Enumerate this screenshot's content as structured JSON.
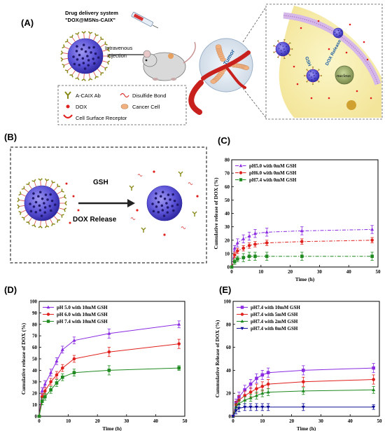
{
  "panels": {
    "A": {
      "label": "(A)",
      "system_title_1": "Drug delivery system",
      "system_title_2": "\"DOX@MSNs-CAIX\"",
      "injection_1": "Intravenous",
      "injection_2": "Injection",
      "tumor_label": "Tumor",
      "gsh_label": "GSH",
      "dox_release_label": "DOX Release",
      "nucleus_label": "nucleus",
      "legend": {
        "antibody": "A-CAIX Ab",
        "disulfide": "Disulfide Bond",
        "dox": "DOX",
        "cancer_cell": "Cancer Cell",
        "receptor": "Cell Surface Receptor"
      }
    },
    "B": {
      "label": "(B)",
      "gsh": "GSH",
      "dox_release": "DOX Release"
    }
  },
  "colors": {
    "purple": "#8a2be2",
    "red": "#e0201c",
    "green": "#1f8a1f",
    "navy": "#10109a",
    "sphere": "#5a52d6",
    "antibody": "#8a8a1a"
  },
  "chart_data": [
    {
      "panel": "(C)",
      "type": "line",
      "xlabel": "Time (h)",
      "ylabel": "Cumulative release of DOX (%)",
      "xlim": [
        0,
        50
      ],
      "ylim": [
        0,
        80
      ],
      "xticks": [
        0,
        10,
        20,
        30,
        40,
        50
      ],
      "yticks": [
        0,
        10,
        20,
        30,
        40,
        50,
        60,
        70,
        80
      ],
      "legend_position": "top-left",
      "series": [
        {
          "name": "pH5.0 with 0mM GSH",
          "color": "#8a2be2",
          "marker": "triangle-up",
          "dash": "dashdot",
          "x": [
            0,
            1,
            2,
            4,
            6,
            8,
            12,
            24,
            48
          ],
          "y": [
            0,
            14,
            18,
            21,
            23,
            25,
            26,
            27,
            28
          ],
          "err": [
            0,
            2,
            3,
            3,
            3,
            3,
            3,
            3,
            3
          ]
        },
        {
          "name": "pH6.0 with 0mM GSH",
          "color": "#e0201c",
          "marker": "circle",
          "dash": "dashdot",
          "x": [
            0,
            1,
            2,
            4,
            6,
            8,
            12,
            24,
            48
          ],
          "y": [
            0,
            9,
            12,
            14,
            16,
            17,
            18,
            19,
            20
          ],
          "err": [
            0,
            2,
            2,
            2,
            2,
            2,
            2,
            2,
            2
          ]
        },
        {
          "name": "pH7.4 with 0mM GSH",
          "color": "#1f8a1f",
          "marker": "square",
          "dash": "dashdot",
          "x": [
            0,
            1,
            2,
            4,
            6,
            8,
            12,
            24,
            48
          ],
          "y": [
            0,
            4,
            6,
            7,
            8,
            8,
            8,
            8,
            8
          ],
          "err": [
            0,
            2,
            2,
            3,
            3,
            3,
            3,
            3,
            3
          ]
        }
      ]
    },
    {
      "panel": "(D)",
      "type": "line",
      "xlabel": "Time (h)",
      "ylabel": "Cumulative release of DOX (%)",
      "xlim": [
        0,
        50
      ],
      "ylim": [
        0,
        100
      ],
      "xticks": [
        0,
        10,
        20,
        30,
        40,
        50
      ],
      "yticks": [
        0,
        10,
        20,
        30,
        40,
        50,
        60,
        70,
        80,
        90,
        100
      ],
      "legend_position": "top-left",
      "series": [
        {
          "name": "pH 5.0 with 10mM GSH",
          "color": "#8a2be2",
          "marker": "triangle-up",
          "dash": "solid",
          "x": [
            0,
            1,
            2,
            4,
            6,
            8,
            12,
            24,
            48
          ],
          "y": [
            0,
            22,
            28,
            38,
            48,
            58,
            66,
            72,
            80
          ],
          "err": [
            0,
            3,
            3,
            3,
            3,
            3,
            3,
            4,
            3
          ]
        },
        {
          "name": "pH 6.0 with 10mM GSH",
          "color": "#e0201c",
          "marker": "circle",
          "dash": "solid",
          "x": [
            0,
            1,
            2,
            4,
            6,
            8,
            12,
            24,
            48
          ],
          "y": [
            0,
            17,
            22,
            30,
            36,
            42,
            50,
            56,
            63
          ],
          "err": [
            0,
            3,
            3,
            3,
            3,
            3,
            3,
            4,
            4
          ]
        },
        {
          "name": "pH 7.4 with 10mM GSH",
          "color": "#1f8a1f",
          "marker": "square",
          "dash": "solid",
          "x": [
            0,
            1,
            2,
            4,
            6,
            8,
            12,
            24,
            48
          ],
          "y": [
            0,
            13,
            17,
            23,
            29,
            34,
            38,
            40,
            42
          ],
          "err": [
            0,
            3,
            3,
            3,
            3,
            3,
            3,
            4,
            2
          ]
        }
      ]
    },
    {
      "panel": "(E)",
      "type": "line",
      "xlabel": "Time (h)",
      "ylabel": "Cummulative Release of DOX (%)",
      "xlim": [
        0,
        50
      ],
      "ylim": [
        0,
        100
      ],
      "xticks": [
        0,
        10,
        20,
        30,
        40,
        50
      ],
      "yticks": [
        0,
        20,
        40,
        60,
        80,
        100
      ],
      "legend_position": "top-left",
      "series": [
        {
          "name": "pH7.4 with 10mM GSH",
          "color": "#8a2be2",
          "marker": "square",
          "dash": "solid",
          "x": [
            0,
            1,
            2,
            4,
            6,
            8,
            10,
            12,
            24,
            48
          ],
          "y": [
            0,
            12,
            17,
            23,
            28,
            33,
            36,
            38,
            40,
            42
          ],
          "err": [
            0,
            3,
            4,
            4,
            4,
            4,
            4,
            4,
            4,
            4
          ]
        },
        {
          "name": "pH7.4 with   5mM GSH",
          "color": "#e0201c",
          "marker": "circle",
          "dash": "solid",
          "x": [
            0,
            1,
            2,
            4,
            6,
            8,
            10,
            12,
            24,
            48
          ],
          "y": [
            0,
            10,
            14,
            18,
            21,
            24,
            26,
            28,
            30,
            32
          ],
          "err": [
            0,
            3,
            4,
            4,
            4,
            4,
            4,
            4,
            4,
            4
          ]
        },
        {
          "name": "pH7.4 with   2mM GSH",
          "color": "#1f8a1f",
          "marker": "triangle-up",
          "dash": "solid",
          "x": [
            0,
            1,
            2,
            4,
            6,
            8,
            10,
            12,
            24,
            48
          ],
          "y": [
            0,
            8,
            11,
            14,
            16,
            18,
            20,
            21,
            22,
            23
          ],
          "err": [
            0,
            3,
            3,
            3,
            3,
            3,
            3,
            3,
            3,
            3
          ]
        },
        {
          "name": "pH7.4 with   0mM GSH",
          "color": "#10109a",
          "marker": "triangle-down",
          "dash": "solid",
          "x": [
            0,
            1,
            2,
            4,
            6,
            8,
            10,
            12,
            24,
            48
          ],
          "y": [
            0,
            5,
            7,
            8,
            8,
            8,
            8,
            8,
            8,
            8
          ],
          "err": [
            0,
            3,
            3,
            3,
            3,
            3,
            3,
            3,
            3,
            2
          ]
        }
      ]
    }
  ]
}
